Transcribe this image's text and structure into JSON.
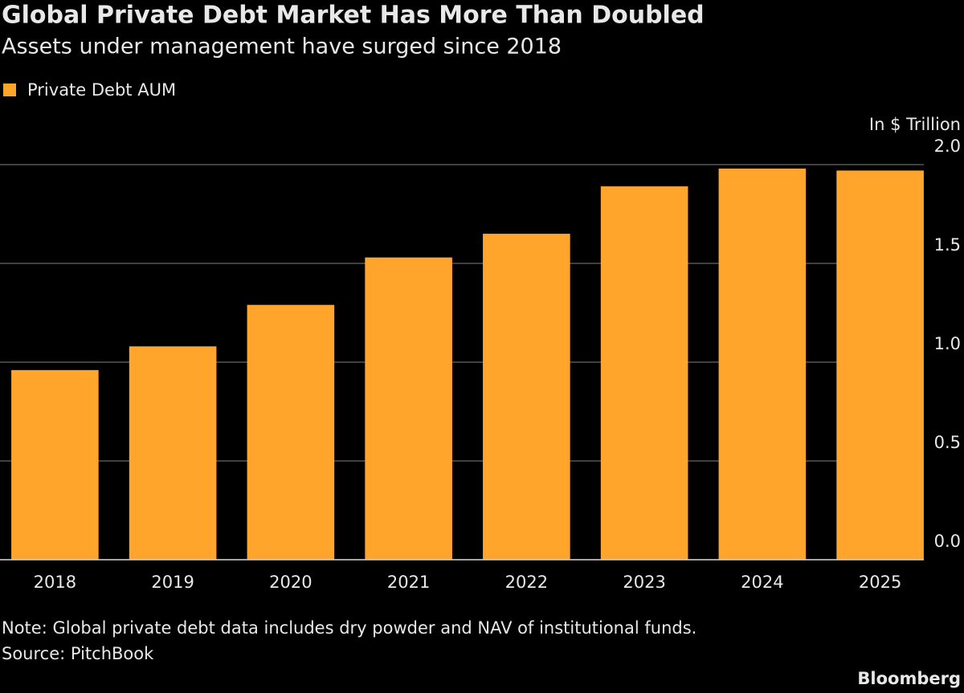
{
  "chart_data": {
    "type": "bar",
    "title": "Global Private Debt Market Has More Than Doubled",
    "subtitle": "Assets under management have surged since 2018",
    "y_axis_label": "In $ Trillion",
    "categories": [
      "2018",
      "2019",
      "2020",
      "2021",
      "2022",
      "2023",
      "2024",
      "2025"
    ],
    "series": [
      {
        "name": "Private Debt AUM",
        "color": "#ffa52c",
        "values": [
          0.96,
          1.08,
          1.29,
          1.53,
          1.65,
          1.89,
          1.98,
          1.97
        ]
      }
    ],
    "ylim": [
      0,
      2.0
    ],
    "yticks": [
      {
        "value": 0,
        "label": "0.0"
      },
      0.5,
      {
        "value": 1,
        "label": "1.0"
      },
      1.5,
      {
        "value": 2,
        "label": "2.0"
      }
    ],
    "grid": true,
    "note": "Note: Global private debt data includes dry powder and NAV of institutional funds.",
    "source": "Source: PitchBook",
    "brand": "Bloomberg"
  }
}
